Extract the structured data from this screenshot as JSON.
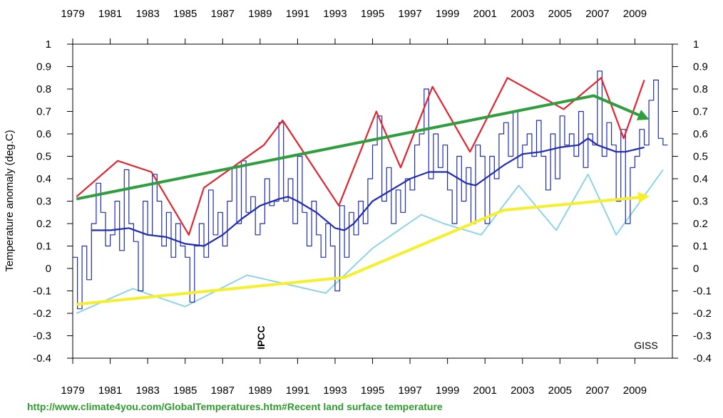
{
  "chart_data": {
    "type": "line",
    "title": "",
    "xlabel": "",
    "ylabel": "Temperature anomaly (deg.C)",
    "xlim": [
      1979,
      2011
    ],
    "ylim": [
      -0.4,
      1.0
    ],
    "x_ticks": [
      "1979",
      "1981",
      "1983",
      "1985",
      "1987",
      "1989",
      "1991",
      "1993",
      "1995",
      "1997",
      "1999",
      "2001",
      "2003",
      "2005",
      "2007",
      "2009"
    ],
    "y_ticks": [
      "1",
      "0.9",
      "0.8",
      "0.7",
      "0.6",
      "0.5",
      "0.4",
      "0.3",
      "0.2",
      "0.1",
      "0",
      "-0.1",
      "-0.2",
      "-0.3",
      "-0.4"
    ],
    "annotations": {
      "ipcc": "IPCC",
      "source_label": "GISS"
    },
    "colors": {
      "monthly": "#1f2bb0",
      "running_mean": "#1f2bb0",
      "peaks": "#e0252f",
      "troughs": "#8fd3e6",
      "peak_trend": "#2f9e3e",
      "trough_trend": "#f5f02a"
    },
    "series": [
      {
        "name": "Monthly land surface temperature anomaly",
        "style": "step",
        "x": [
          1979.0,
          1979.25,
          1979.5,
          1979.75,
          1980.0,
          1980.25,
          1980.5,
          1980.75,
          1981.0,
          1981.25,
          1981.5,
          1981.75,
          1982.0,
          1982.25,
          1982.5,
          1982.75,
          1983.0,
          1983.25,
          1983.5,
          1983.75,
          1984.0,
          1984.25,
          1984.5,
          1984.75,
          1985.0,
          1985.25,
          1985.5,
          1985.75,
          1986.0,
          1986.25,
          1986.5,
          1986.75,
          1987.0,
          1987.25,
          1987.5,
          1987.75,
          1988.0,
          1988.25,
          1988.5,
          1988.75,
          1989.0,
          1989.25,
          1989.5,
          1989.75,
          1990.0,
          1990.25,
          1990.5,
          1990.75,
          1991.0,
          1991.25,
          1991.5,
          1991.75,
          1992.0,
          1992.25,
          1992.5,
          1992.75,
          1993.0,
          1993.25,
          1993.5,
          1993.75,
          1994.0,
          1994.25,
          1994.5,
          1994.75,
          1995.0,
          1995.25,
          1995.5,
          1995.75,
          1996.0,
          1996.25,
          1996.5,
          1996.75,
          1997.0,
          1997.25,
          1997.5,
          1997.75,
          1998.0,
          1998.25,
          1998.5,
          1998.75,
          1999.0,
          1999.25,
          1999.5,
          1999.75,
          2000.0,
          2000.25,
          2000.5,
          2000.75,
          2001.0,
          2001.25,
          2001.5,
          2001.75,
          2002.0,
          2002.25,
          2002.5,
          2002.75,
          2003.0,
          2003.25,
          2003.5,
          2003.75,
          2004.0,
          2004.25,
          2004.5,
          2004.75,
          2005.0,
          2005.25,
          2005.5,
          2005.75,
          2006.0,
          2006.25,
          2006.5,
          2006.75,
          2007.0,
          2007.25,
          2007.5,
          2007.75,
          2008.0,
          2008.25,
          2008.5,
          2008.75,
          2009.0,
          2009.25,
          2009.5,
          2009.75,
          2010.0,
          2010.25,
          2010.5
        ],
        "values": [
          0.05,
          -0.18,
          0.1,
          -0.05,
          0.2,
          0.38,
          0.25,
          0.1,
          0.15,
          0.3,
          0.08,
          0.44,
          0.2,
          0.12,
          -0.1,
          0.3,
          0.15,
          0.42,
          0.3,
          0.1,
          0.25,
          0.05,
          0.2,
          0.1,
          0.05,
          -0.15,
          0.1,
          0.2,
          0.05,
          0.35,
          0.15,
          0.25,
          0.1,
          0.3,
          0.45,
          0.2,
          0.48,
          0.25,
          0.32,
          0.15,
          0.2,
          0.4,
          0.28,
          0.3,
          0.65,
          0.3,
          0.4,
          0.2,
          0.5,
          0.25,
          0.1,
          0.3,
          0.15,
          0.05,
          0.2,
          0.1,
          -0.1,
          0.28,
          0.05,
          0.25,
          0.15,
          0.3,
          0.2,
          0.4,
          0.55,
          0.68,
          0.3,
          0.45,
          0.2,
          0.35,
          0.25,
          0.4,
          0.35,
          0.55,
          0.6,
          0.8,
          0.4,
          0.6,
          0.45,
          0.55,
          0.35,
          0.2,
          0.5,
          0.3,
          0.45,
          0.2,
          0.55,
          0.5,
          0.2,
          0.5,
          0.4,
          0.6,
          0.65,
          0.5,
          0.7,
          0.45,
          0.55,
          0.6,
          0.5,
          0.66,
          0.5,
          0.35,
          0.6,
          0.4,
          0.68,
          0.55,
          0.6,
          0.5,
          0.7,
          0.45,
          0.6,
          0.55,
          0.88,
          0.5,
          0.65,
          0.55,
          0.3,
          0.62,
          0.2,
          0.45,
          0.5,
          0.62,
          0.55,
          0.75,
          0.84,
          0.58,
          0.55
        ]
      },
      {
        "name": "Running mean",
        "style": "line",
        "x": [
          1980.0,
          1981.0,
          1982.0,
          1983.0,
          1984.0,
          1985.0,
          1986.0,
          1987.0,
          1988.0,
          1989.0,
          1990.0,
          1990.5,
          1991.0,
          1992.0,
          1993.0,
          1993.5,
          1994.0,
          1995.0,
          1996.0,
          1997.0,
          1998.0,
          1999.0,
          2000.0,
          2000.5,
          2001.0,
          2002.0,
          2003.0,
          2004.0,
          2005.0,
          2006.0,
          2006.5,
          2007.0,
          2008.0,
          2008.5,
          2009.0,
          2009.5
        ],
        "values": [
          0.17,
          0.17,
          0.18,
          0.15,
          0.14,
          0.11,
          0.1,
          0.15,
          0.22,
          0.28,
          0.31,
          0.32,
          0.3,
          0.25,
          0.18,
          0.17,
          0.2,
          0.3,
          0.35,
          0.4,
          0.43,
          0.43,
          0.38,
          0.37,
          0.4,
          0.46,
          0.51,
          0.52,
          0.54,
          0.55,
          0.58,
          0.55,
          0.52,
          0.52,
          0.53,
          0.54
        ]
      },
      {
        "name": "Peaks (red)",
        "style": "line",
        "x": [
          1979.2,
          1981.4,
          1983.2,
          1985.2,
          1986.0,
          1989.2,
          1990.2,
          1993.2,
          1995.2,
          1996.5,
          1998.2,
          2000.2,
          2002.2,
          2005.2,
          2007.2,
          2008.4,
          2009.5
        ],
        "values": [
          0.32,
          0.48,
          0.43,
          0.15,
          0.36,
          0.55,
          0.66,
          0.28,
          0.7,
          0.45,
          0.81,
          0.52,
          0.85,
          0.71,
          0.85,
          0.58,
          0.84
        ]
      },
      {
        "name": "Troughs (light blue)",
        "style": "line",
        "x": [
          1979.2,
          1982.2,
          1985.0,
          1988.3,
          1992.5,
          1995.0,
          1997.6,
          1998.8,
          2000.8,
          2002.8,
          2004.8,
          2006.5,
          2008.0,
          2010.5
        ],
        "values": [
          -0.2,
          -0.09,
          -0.17,
          -0.03,
          -0.11,
          0.09,
          0.24,
          0.2,
          0.15,
          0.37,
          0.17,
          0.42,
          0.15,
          0.44
        ]
      },
      {
        "name": "Peak trend (green)",
        "style": "arrow",
        "x": [
          1979.2,
          2006.8,
          2009.6
        ],
        "values": [
          0.31,
          0.77,
          0.67
        ]
      },
      {
        "name": "Trough trend (yellow)",
        "style": "arrow",
        "x": [
          1979.2,
          1993.5,
          2002.0,
          2009.6
        ],
        "values": [
          -0.16,
          -0.04,
          0.26,
          0.32
        ]
      }
    ]
  },
  "footer": {
    "source_url": "http://www.climate4you.com/GlobalTemperatures.htm#Recent land surface temperature"
  }
}
